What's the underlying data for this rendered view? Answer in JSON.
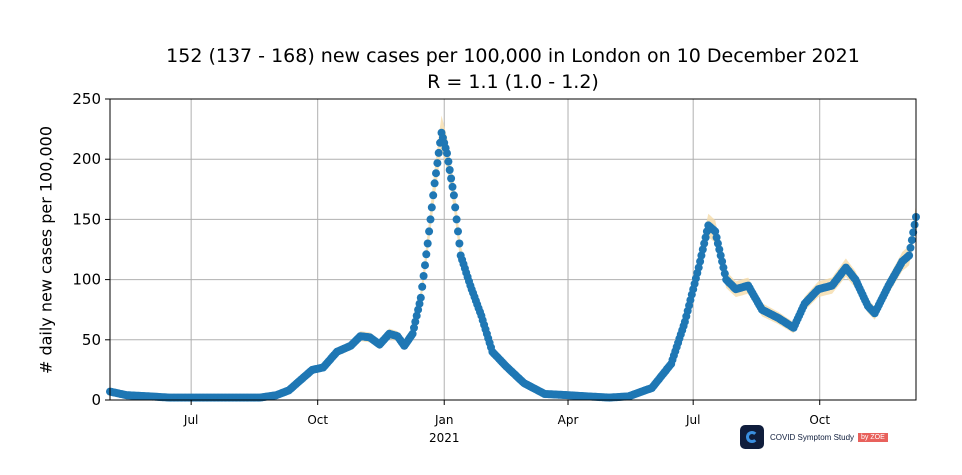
{
  "chart_data": {
    "type": "scatter",
    "title": "152 (137 - 168) new cases per 100,000 in London on 10 December 2021",
    "subtitle": "R = 1.1 (1.0 - 1.2)",
    "xlabel": "",
    "ylabel": "# daily new cases per 100,000",
    "ylim": [
      0,
      250
    ],
    "xlim": [
      "2020-05-03",
      "2021-12-10"
    ],
    "grid": true,
    "yticks": [
      0,
      50,
      100,
      150,
      200,
      250
    ],
    "xticks": [
      {
        "date": "2020-07-01",
        "label": "Jul"
      },
      {
        "date": "2020-10-01",
        "label": "Oct"
      },
      {
        "date": "2021-01-01",
        "label": "Jan"
      },
      {
        "date": "2021-04-01",
        "label": "Apr"
      },
      {
        "date": "2021-07-01",
        "label": "Jul"
      },
      {
        "date": "2021-10-01",
        "label": "Oct"
      }
    ],
    "year_label": "2021",
    "series": [
      {
        "color": "#1f77b4",
        "band_color": "#f5dcaa",
        "points": [
          [
            "2020-05-03",
            7
          ],
          [
            "2020-05-15",
            4
          ],
          [
            "2020-06-01",
            3
          ],
          [
            "2020-06-15",
            2
          ],
          [
            "2020-07-01",
            2
          ],
          [
            "2020-07-15",
            2
          ],
          [
            "2020-08-01",
            2
          ],
          [
            "2020-08-20",
            2
          ],
          [
            "2020-09-01",
            4
          ],
          [
            "2020-09-10",
            8
          ],
          [
            "2020-09-20",
            18
          ],
          [
            "2020-09-27",
            25
          ],
          [
            "2020-10-05",
            27
          ],
          [
            "2020-10-15",
            40
          ],
          [
            "2020-10-25",
            45
          ],
          [
            "2020-11-01",
            53
          ],
          [
            "2020-11-08",
            52
          ],
          [
            "2020-11-15",
            46
          ],
          [
            "2020-11-22",
            55
          ],
          [
            "2020-11-28",
            53
          ],
          [
            "2020-12-03",
            45
          ],
          [
            "2020-12-09",
            55
          ],
          [
            "2020-12-15",
            85
          ],
          [
            "2020-12-20",
            130
          ],
          [
            "2020-12-25",
            180
          ],
          [
            "2020-12-30",
            222
          ],
          [
            "2021-01-03",
            205
          ],
          [
            "2021-01-08",
            170
          ],
          [
            "2021-01-13",
            120
          ],
          [
            "2021-01-20",
            95
          ],
          [
            "2021-01-28",
            70
          ],
          [
            "2021-02-05",
            40
          ],
          [
            "2021-02-15",
            28
          ],
          [
            "2021-02-28",
            14
          ],
          [
            "2021-03-15",
            5
          ],
          [
            "2021-04-01",
            4
          ],
          [
            "2021-04-15",
            3
          ],
          [
            "2021-05-01",
            2
          ],
          [
            "2021-05-15",
            3
          ],
          [
            "2021-06-01",
            10
          ],
          [
            "2021-06-15",
            30
          ],
          [
            "2021-06-25",
            65
          ],
          [
            "2021-07-05",
            110
          ],
          [
            "2021-07-12",
            145
          ],
          [
            "2021-07-17",
            140
          ],
          [
            "2021-07-25",
            100
          ],
          [
            "2021-08-01",
            92
          ],
          [
            "2021-08-10",
            95
          ],
          [
            "2021-08-20",
            75
          ],
          [
            "2021-09-01",
            68
          ],
          [
            "2021-09-12",
            60
          ],
          [
            "2021-09-20",
            80
          ],
          [
            "2021-09-30",
            92
          ],
          [
            "2021-10-10",
            95
          ],
          [
            "2021-10-20",
            110
          ],
          [
            "2021-10-27",
            100
          ],
          [
            "2021-11-05",
            78
          ],
          [
            "2021-11-10",
            72
          ],
          [
            "2021-11-20",
            95
          ],
          [
            "2021-11-30",
            115
          ],
          [
            "2021-12-05",
            120
          ],
          [
            "2021-12-10",
            152
          ]
        ]
      }
    ]
  },
  "logo": {
    "text": "COVID Symptom Study",
    "by": "by ZOE"
  }
}
